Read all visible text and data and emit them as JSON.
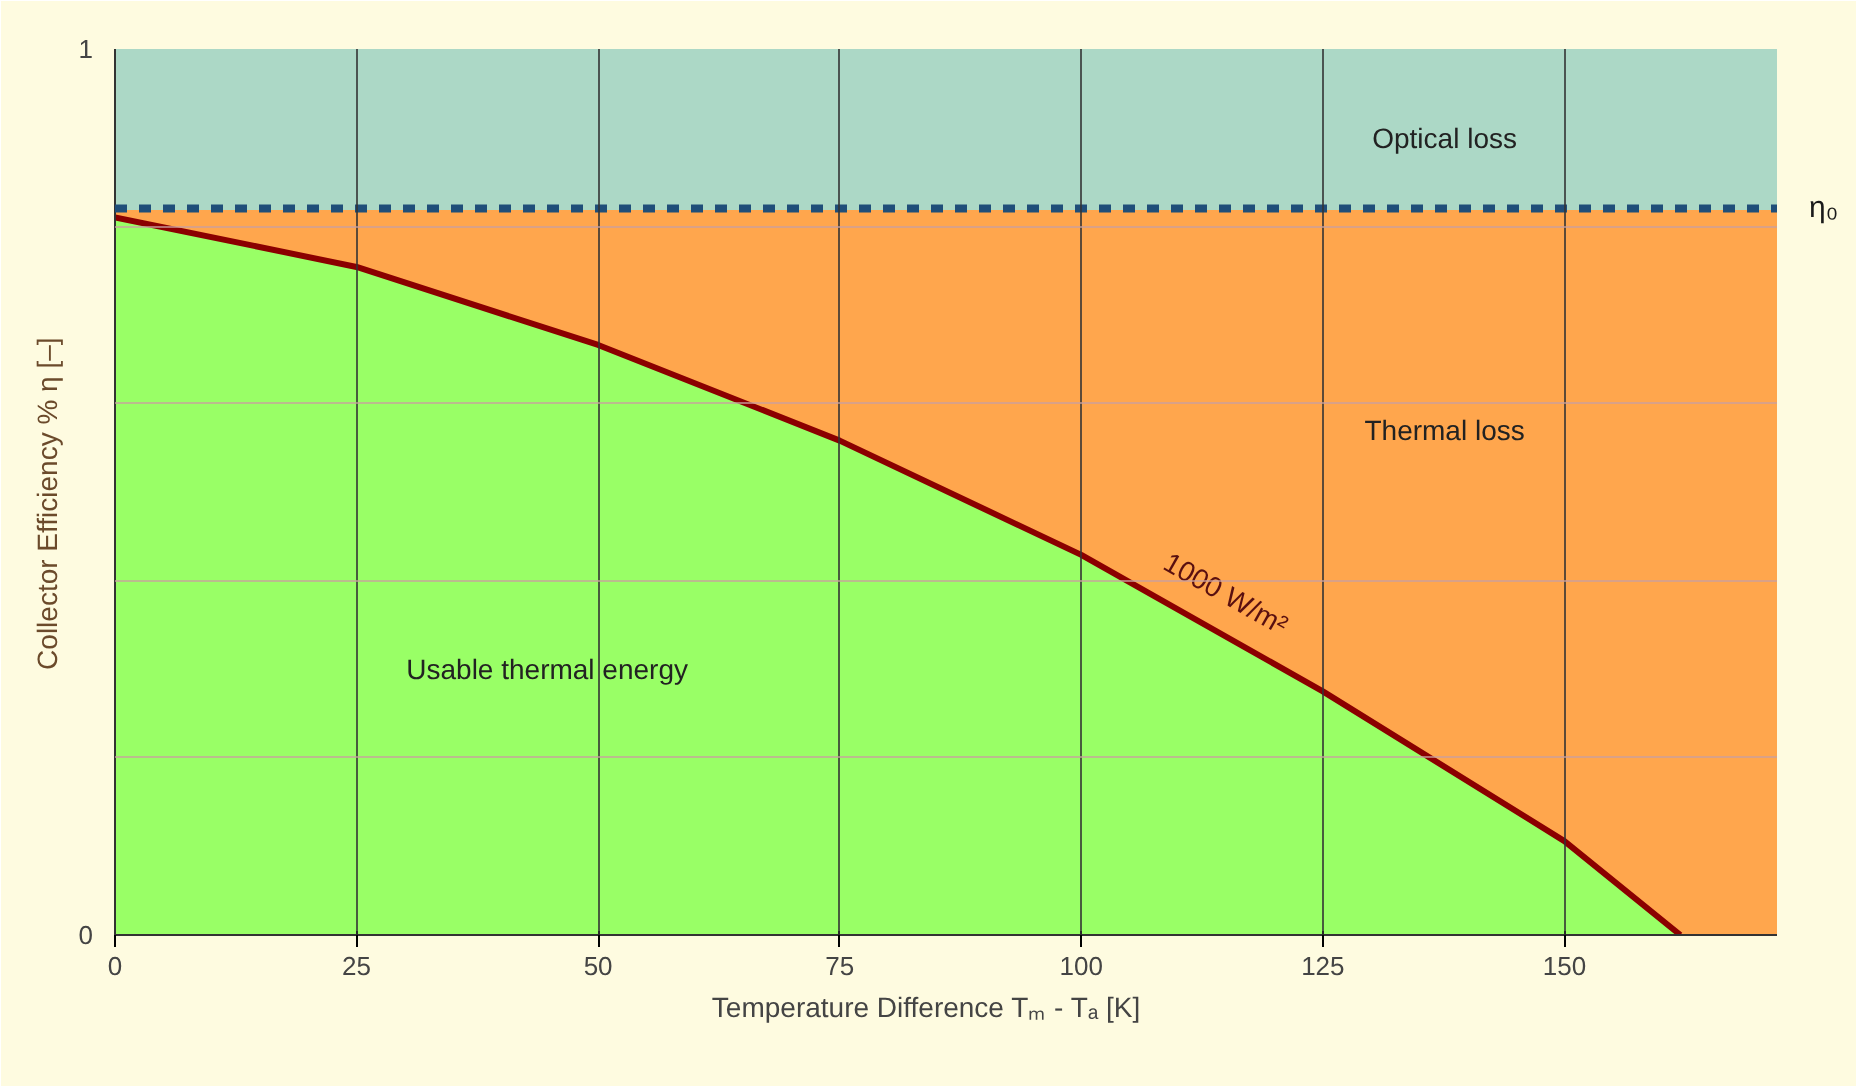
{
  "chart_data": {
    "type": "area",
    "stacked": true,
    "x": [
      0,
      25,
      50,
      75,
      100,
      125,
      150,
      162,
      172
    ],
    "series": [
      {
        "name": "Usable thermal energy",
        "color": "#99ff66",
        "values": [
          0.81,
          0.754,
          0.666,
          0.558,
          0.429,
          0.275,
          0.106,
          0,
          0
        ]
      },
      {
        "name": "Thermal loss",
        "color": "#ffa64d",
        "values": [
          0.01,
          0.066,
          0.154,
          0.262,
          0.391,
          0.545,
          0.714,
          0.82,
          0.82
        ]
      },
      {
        "name": "Optical loss",
        "color": "#acd8c6",
        "values": [
          0.18,
          0.18,
          0.18,
          0.18,
          0.18,
          0.18,
          0.18,
          0.18,
          0.18
        ]
      },
      {
        "name": "1000 W/m²",
        "type": "line",
        "color": "#8b0000",
        "x": [
          0,
          25,
          50,
          75,
          100,
          125,
          150,
          162
        ],
        "values": [
          0.81,
          0.754,
          0.666,
          0.558,
          0.429,
          0.275,
          0.106,
          0
        ]
      }
    ],
    "xlabel": "Temperature Difference      Tₘ - Tₐ [K]",
    "ylabel": "Collector Efficiency %    η [–]",
    "xlim": [
      0,
      172
    ],
    "xticks": [
      0,
      25,
      50,
      75,
      100,
      125,
      150
    ],
    "ylim": [
      0,
      1
    ],
    "yticks": [
      0,
      {
        "value": 0.2,
        "label": null
      },
      {
        "value": 0.4,
        "label": null
      },
      {
        "value": 0.6,
        "label": null
      },
      {
        "value": 0.8,
        "label": null
      },
      1
    ],
    "ref_lines": [
      {
        "axis": "y",
        "value": 0.82,
        "label": "η₀",
        "color": "#1f4e79",
        "line_style": "dashed"
      }
    ],
    "grid": true
  }
}
